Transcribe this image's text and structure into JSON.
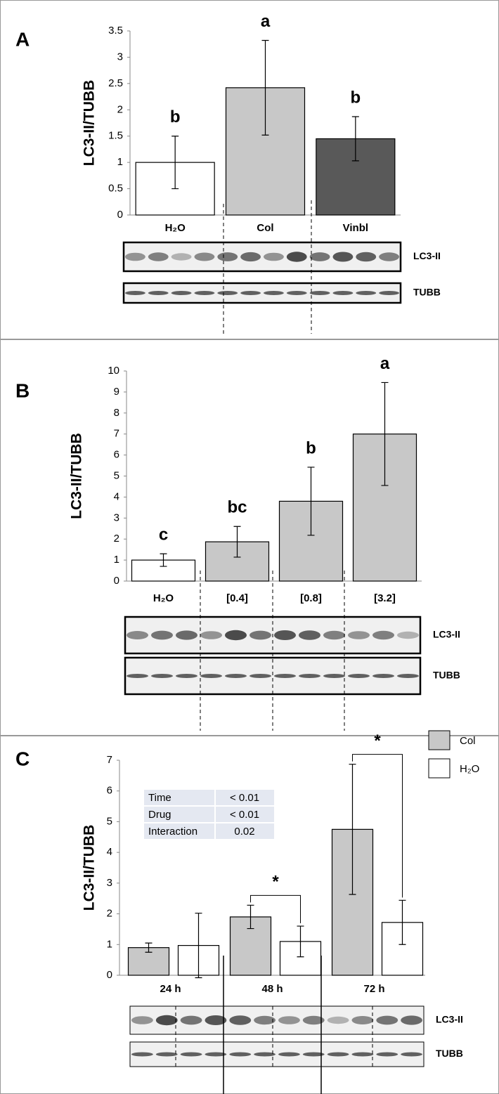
{
  "chart_data": [
    {
      "type": "bar",
      "panel_label": "A",
      "y_label": "LC3-II/TUBB",
      "categories": [
        "H₂O",
        "Col",
        "Vinbl"
      ],
      "values": [
        1.0,
        2.42,
        1.45
      ],
      "errors": [
        0.5,
        0.9,
        0.42
      ],
      "colors": [
        "#ffffff",
        "#c8c8c8",
        "#595959"
      ],
      "annotations": [
        "b",
        "a",
        "b"
      ],
      "ylim": [
        0,
        3.5
      ],
      "yticks": [
        0,
        0.5,
        1,
        1.5,
        2,
        2.5,
        3,
        3.5
      ],
      "blot_labels": [
        "LC3-II",
        "TUBB"
      ]
    },
    {
      "type": "bar",
      "panel_label": "B",
      "y_label": "LC3-II/TUBB",
      "categories": [
        "H₂O",
        "[0.4]",
        "[0.8]",
        "[3.2]"
      ],
      "values": [
        1.0,
        1.87,
        3.8,
        7.0
      ],
      "errors": [
        0.3,
        0.73,
        1.62,
        2.45
      ],
      "colors": [
        "#ffffff",
        "#c8c8c8",
        "#c8c8c8",
        "#c8c8c8"
      ],
      "annotations": [
        "c",
        "bc",
        "b",
        "a"
      ],
      "ylim": [
        0,
        10
      ],
      "yticks": [
        0,
        1,
        2,
        3,
        4,
        5,
        6,
        7,
        8,
        9,
        10
      ],
      "blot_labels": [
        "LC3-II",
        "TUBB"
      ]
    },
    {
      "type": "grouped_bar",
      "panel_label": "C",
      "y_label": "LC3-II/TUBB",
      "categories": [
        "24 h",
        "48 h",
        "72 h"
      ],
      "series": [
        {
          "name": "Col",
          "color": "#c8c8c8",
          "values": [
            0.9,
            1.9,
            4.75
          ],
          "errors": [
            0.15,
            0.38,
            2.12
          ]
        },
        {
          "name": "H₂O",
          "color": "#ffffff",
          "values": [
            0.97,
            1.1,
            1.72
          ],
          "errors": [
            1.05,
            0.5,
            0.72
          ]
        }
      ],
      "annotations": [
        null,
        "*",
        "*"
      ],
      "table": [
        [
          "Time",
          "< 0.01"
        ],
        [
          "Drug",
          "< 0.01"
        ],
        [
          "Interaction",
          "0.02"
        ]
      ],
      "ylim": [
        0,
        7
      ],
      "yticks": [
        0,
        1,
        2,
        3,
        4,
        5,
        6,
        7
      ],
      "blot_labels": [
        "LC3-II",
        "TUBB"
      ]
    }
  ]
}
